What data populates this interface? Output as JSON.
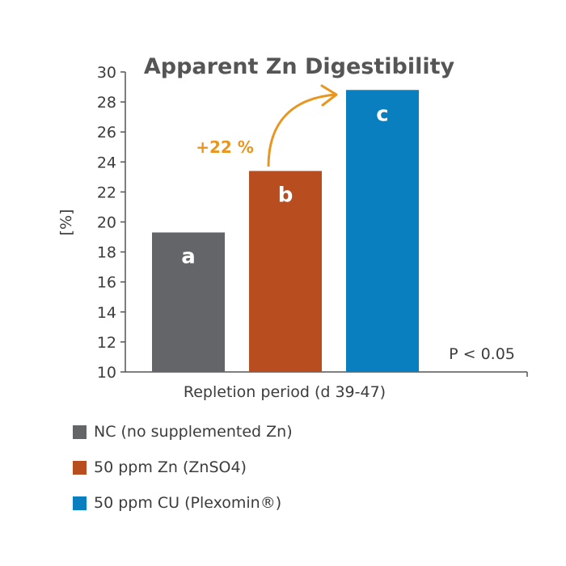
{
  "chart_data": {
    "type": "bar",
    "title": "Apparent Zn Digestibility",
    "ylabel": "[%]",
    "xlabel": "Repletion period (d 39-47)",
    "ylim": [
      10,
      30
    ],
    "yticks": [
      10,
      12,
      14,
      16,
      18,
      20,
      22,
      24,
      26,
      28,
      30
    ],
    "grid": false,
    "series": [
      {
        "name": "NC (no supplemented Zn)",
        "value": 19.3,
        "letter": "a",
        "color": "#646569"
      },
      {
        "name": "50 ppm Zn (ZnSO4)",
        "value": 23.4,
        "letter": "b",
        "color": "#b84e1f"
      },
      {
        "name": "50 ppm CU (Plexomin®)",
        "value": 28.8,
        "letter": "c",
        "color": "#0a7fbf"
      }
    ],
    "annotation": {
      "text": "+22 %",
      "color": "#e8961e"
    },
    "note": "P < 0.05",
    "legend_position": "bottom-left"
  }
}
